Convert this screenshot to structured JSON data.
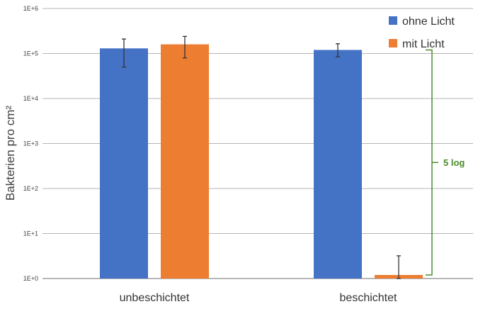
{
  "chart_data": {
    "type": "bar",
    "title": "",
    "xlabel": "",
    "ylabel": "Bakterien pro cm²",
    "y_scale": "log",
    "ylim": [
      1,
      1000000
    ],
    "ytick_labels": [
      "1E+0",
      "1E+1",
      "1E+2",
      "1E+3",
      "1E+4",
      "1E+5",
      "1E+6"
    ],
    "categories": [
      "unbeschichtet",
      "beschichtet"
    ],
    "series": [
      {
        "name": "ohne Licht",
        "color": "#4472c4",
        "values": [
          130000,
          120000
        ],
        "error_low": [
          50000,
          85000
        ],
        "error_high": [
          210000,
          165000
        ]
      },
      {
        "name": "mit Licht",
        "color": "#ed7d31",
        "values": [
          160000,
          1.2
        ],
        "error_low": [
          80000,
          1.0
        ],
        "error_high": [
          240000,
          3.2
        ]
      }
    ],
    "legend_position": "top-right",
    "grid": true,
    "annotation": {
      "text": "5 log",
      "color": "#4a8b2c",
      "from_value": 1.2,
      "to_value": 120000,
      "category": "beschichtet"
    }
  }
}
